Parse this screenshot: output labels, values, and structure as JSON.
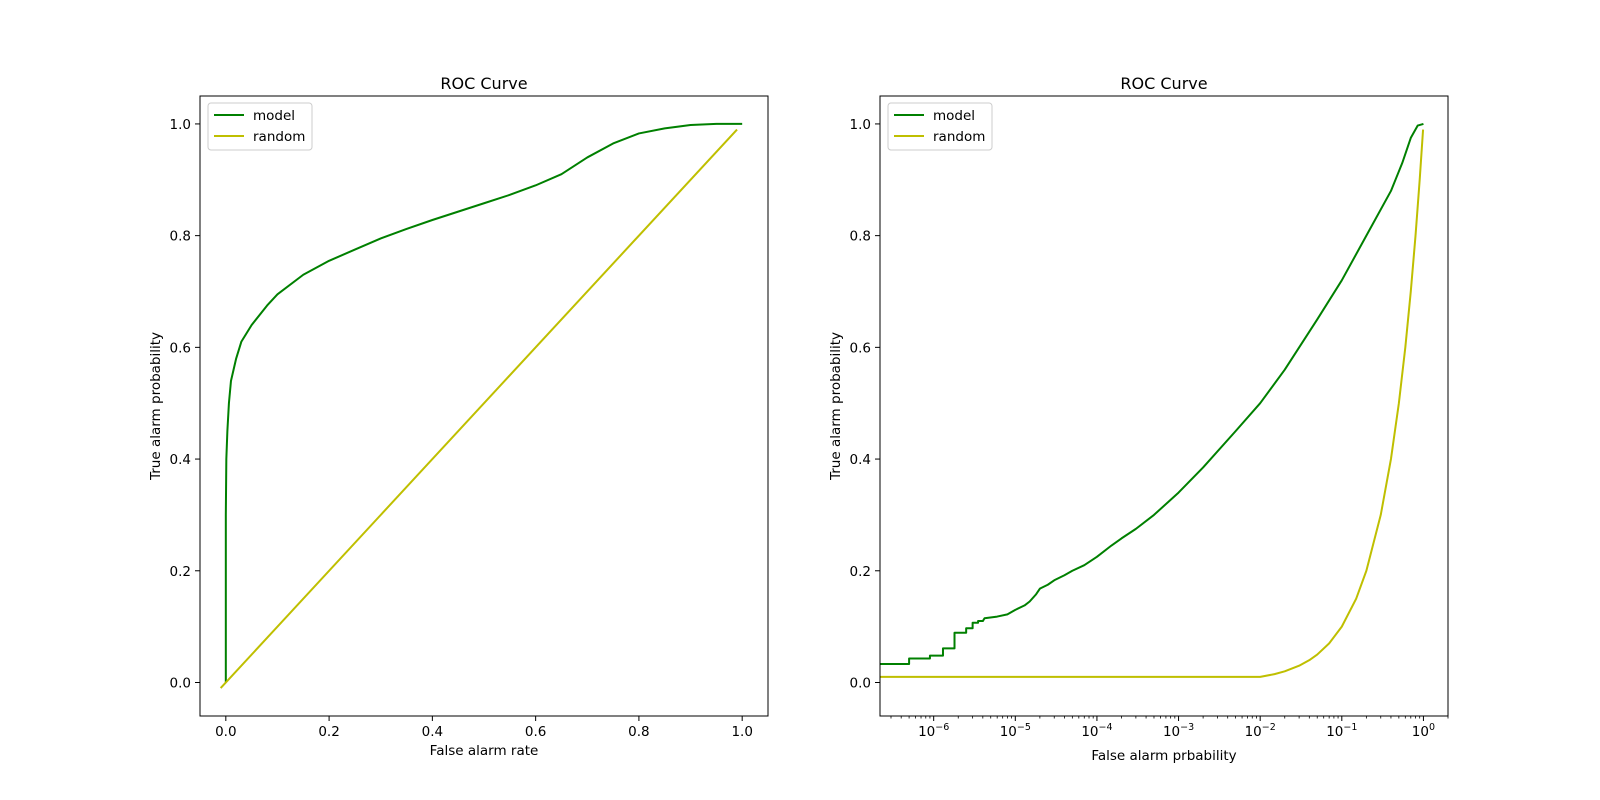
{
  "chart_data": [
    {
      "type": "line",
      "title": "ROC Curve",
      "xlabel": "False alarm rate",
      "ylabel": "True alarm probability",
      "xscale": "linear",
      "xlim": [
        -0.05,
        1.05
      ],
      "ylim": [
        -0.06,
        1.05
      ],
      "xticks": [
        {
          "value": 0.0,
          "label": "0.0"
        },
        {
          "value": 0.2,
          "label": "0.2"
        },
        {
          "value": 0.4,
          "label": "0.4"
        },
        {
          "value": 0.6,
          "label": "0.6"
        },
        {
          "value": 0.8,
          "label": "0.8"
        },
        {
          "value": 1.0,
          "label": "1.0"
        }
      ],
      "yticks": [
        {
          "value": 0.0,
          "label": "0.0"
        },
        {
          "value": 0.2,
          "label": "0.2"
        },
        {
          "value": 0.4,
          "label": "0.4"
        },
        {
          "value": 0.6,
          "label": "0.6"
        },
        {
          "value": 0.8,
          "label": "0.8"
        },
        {
          "value": 1.0,
          "label": "1.0"
        }
      ],
      "legend": "top-left",
      "series": [
        {
          "name": "model",
          "color": "#008000",
          "points": [
            [
              0.0,
              0.0
            ],
            [
              0.0,
              0.3
            ],
            [
              0.001,
              0.4
            ],
            [
              0.003,
              0.45
            ],
            [
              0.006,
              0.5
            ],
            [
              0.01,
              0.54
            ],
            [
              0.02,
              0.58
            ],
            [
              0.03,
              0.61
            ],
            [
              0.05,
              0.64
            ],
            [
              0.08,
              0.675
            ],
            [
              0.1,
              0.695
            ],
            [
              0.15,
              0.73
            ],
            [
              0.2,
              0.755
            ],
            [
              0.25,
              0.775
            ],
            [
              0.3,
              0.795
            ],
            [
              0.35,
              0.812
            ],
            [
              0.4,
              0.828
            ],
            [
              0.45,
              0.843
            ],
            [
              0.5,
              0.858
            ],
            [
              0.55,
              0.873
            ],
            [
              0.6,
              0.89
            ],
            [
              0.65,
              0.91
            ],
            [
              0.7,
              0.94
            ],
            [
              0.75,
              0.965
            ],
            [
              0.8,
              0.983
            ],
            [
              0.85,
              0.992
            ],
            [
              0.9,
              0.998
            ],
            [
              0.95,
              1.0
            ],
            [
              1.0,
              1.0
            ]
          ]
        },
        {
          "name": "random",
          "color": "#bfbf00",
          "points": [
            [
              -0.01,
              -0.01
            ],
            [
              0.99,
              0.99
            ]
          ]
        }
      ]
    },
    {
      "type": "line",
      "title": "ROC Curve",
      "xlabel": "False alarm prbability",
      "ylabel": "True alarm probability",
      "xscale": "log",
      "xlim": [
        2.2e-07,
        2.0
      ],
      "ylim": [
        -0.06,
        1.05
      ],
      "xticks": [
        {
          "value": 1e-06,
          "base": "10",
          "exp": "−6"
        },
        {
          "value": 1e-05,
          "base": "10",
          "exp": "−5"
        },
        {
          "value": 0.0001,
          "base": "10",
          "exp": "−4"
        },
        {
          "value": 0.001,
          "base": "10",
          "exp": "−3"
        },
        {
          "value": 0.01,
          "base": "10",
          "exp": "−2"
        },
        {
          "value": 0.1,
          "base": "10",
          "exp": "−1"
        },
        {
          "value": 1,
          "base": "10",
          "exp": "0"
        }
      ],
      "yticks": [
        {
          "value": 0.0,
          "label": "0.0"
        },
        {
          "value": 0.2,
          "label": "0.2"
        },
        {
          "value": 0.4,
          "label": "0.4"
        },
        {
          "value": 0.6,
          "label": "0.6"
        },
        {
          "value": 0.8,
          "label": "0.8"
        },
        {
          "value": 1.0,
          "label": "1.0"
        }
      ],
      "legend": "top-left",
      "series": [
        {
          "name": "model",
          "color": "#008000",
          "points": [
            [
              2.2e-07,
              0.033
            ],
            [
              5e-07,
              0.033
            ],
            [
              5e-07,
              0.043
            ],
            [
              9e-07,
              0.043
            ],
            [
              9e-07,
              0.048
            ],
            [
              1.3e-06,
              0.048
            ],
            [
              1.3e-06,
              0.061
            ],
            [
              1.8e-06,
              0.061
            ],
            [
              1.8e-06,
              0.089
            ],
            [
              2.5e-06,
              0.089
            ],
            [
              2.5e-06,
              0.097
            ],
            [
              3e-06,
              0.097
            ],
            [
              3e-06,
              0.107
            ],
            [
              3.5e-06,
              0.107
            ],
            [
              3.5e-06,
              0.11
            ],
            [
              4e-06,
              0.11
            ],
            [
              4.2e-06,
              0.115
            ],
            [
              6e-06,
              0.118
            ],
            [
              8e-06,
              0.122
            ],
            [
              1e-05,
              0.13
            ],
            [
              1.3e-05,
              0.138
            ],
            [
              1.5e-05,
              0.145
            ],
            [
              1.8e-05,
              0.158
            ],
            [
              2e-05,
              0.168
            ],
            [
              2.5e-05,
              0.175
            ],
            [
              3e-05,
              0.183
            ],
            [
              4e-05,
              0.192
            ],
            [
              5e-05,
              0.2
            ],
            [
              7e-05,
              0.21
            ],
            [
              0.0001,
              0.225
            ],
            [
              0.00015,
              0.245
            ],
            [
              0.0002,
              0.258
            ],
            [
              0.0003,
              0.275
            ],
            [
              0.0005,
              0.3
            ],
            [
              0.001,
              0.34
            ],
            [
              0.002,
              0.385
            ],
            [
              0.005,
              0.45
            ],
            [
              0.01,
              0.5
            ],
            [
              0.02,
              0.56
            ],
            [
              0.05,
              0.65
            ],
            [
              0.1,
              0.72
            ],
            [
              0.2,
              0.8
            ],
            [
              0.4,
              0.88
            ],
            [
              0.55,
              0.93
            ],
            [
              0.7,
              0.975
            ],
            [
              0.85,
              0.997
            ],
            [
              1.0,
              1.0
            ]
          ]
        },
        {
          "name": "random",
          "color": "#bfbf00",
          "points": [
            [
              2.2e-07,
              0.01
            ],
            [
              0.01,
              0.01
            ],
            [
              0.015,
              0.015
            ],
            [
              0.02,
              0.02
            ],
            [
              0.03,
              0.03
            ],
            [
              0.04,
              0.04
            ],
            [
              0.05,
              0.05
            ],
            [
              0.07,
              0.07
            ],
            [
              0.1,
              0.1
            ],
            [
              0.15,
              0.15
            ],
            [
              0.2,
              0.2
            ],
            [
              0.3,
              0.3
            ],
            [
              0.4,
              0.4
            ],
            [
              0.5,
              0.5
            ],
            [
              0.6,
              0.6
            ],
            [
              0.7,
              0.7
            ],
            [
              0.8,
              0.8
            ],
            [
              0.9,
              0.9
            ],
            [
              0.99,
              0.99
            ]
          ]
        }
      ]
    }
  ]
}
